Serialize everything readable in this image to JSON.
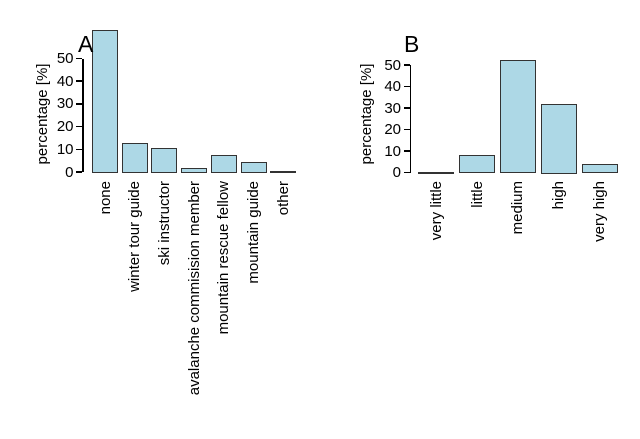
{
  "figure": {
    "background": "#FFFFFF",
    "bar_fill": "#ADD8E6",
    "bar_border": "#333333",
    "axis_color": "#000000",
    "text_color": "#000000"
  },
  "chart_data": [
    {
      "type": "bar",
      "panel_label": "A",
      "title": "",
      "xlabel": "",
      "ylabel": "percentage [%]",
      "categories": [
        "none",
        "winter tour guide",
        "ski instructor",
        "avalanche commisision member",
        "mountain rescue fellow",
        "mountain guide",
        "other"
      ],
      "values": [
        63,
        13,
        11,
        2,
        8,
        5,
        1
      ],
      "yticks": [
        0,
        10,
        20,
        30,
        40,
        50
      ],
      "ylim": [
        0,
        64
      ],
      "grid": false,
      "legend": null,
      "x_tick_rotation": 90
    },
    {
      "type": "bar",
      "panel_label": "B",
      "title": "",
      "xlabel": "",
      "ylabel": "percentage [%]",
      "categories": [
        "very little",
        "little",
        "medium",
        "high",
        "very high"
      ],
      "values": [
        0.5,
        8.5,
        53,
        32.5,
        4.5
      ],
      "yticks": [
        0,
        10,
        20,
        30,
        40,
        50
      ],
      "ylim": [
        0,
        55
      ],
      "grid": false,
      "legend": null,
      "x_tick_rotation": 90
    }
  ]
}
